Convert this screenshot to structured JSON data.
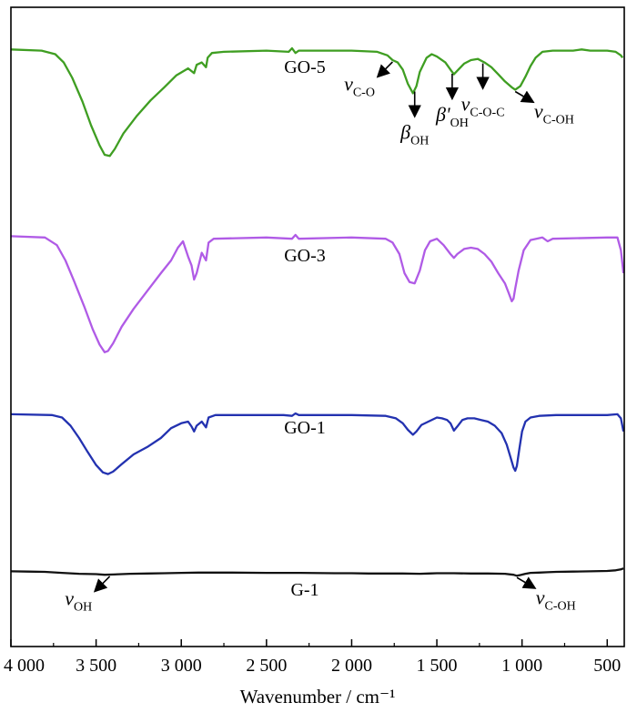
{
  "chart_data": {
    "type": "line",
    "title": "",
    "xlabel": "Wavenumber / cm⁻¹",
    "ylabel": "",
    "xlim": [
      4000,
      400
    ],
    "x_reversed": true,
    "xticks": [
      {
        "value": 4000,
        "label": "4 000"
      },
      {
        "value": 3500,
        "label": "3 500"
      },
      {
        "value": 3000,
        "label": "3 000"
      },
      {
        "value": 2500,
        "label": "2 500"
      },
      {
        "value": 2000,
        "label": "2 000"
      },
      {
        "value": 1500,
        "label": "1 500"
      },
      {
        "value": 1000,
        "label": "1 000"
      },
      {
        "value": 500,
        "label": "500"
      }
    ],
    "yticks": "none",
    "grid": false,
    "legend": "none",
    "series": [
      {
        "label": "GO-5",
        "color": "#3f9e22",
        "baseline": 0,
        "points": [
          [
            4000,
            0.01
          ],
          [
            3820,
            0.02
          ],
          [
            3740,
            0.05
          ],
          [
            3690,
            0.12
          ],
          [
            3640,
            0.25
          ],
          [
            3580,
            0.45
          ],
          [
            3530,
            0.65
          ],
          [
            3480,
            0.82
          ],
          [
            3450,
            0.9
          ],
          [
            3420,
            0.91
          ],
          [
            3390,
            0.85
          ],
          [
            3340,
            0.72
          ],
          [
            3260,
            0.57
          ],
          [
            3180,
            0.44
          ],
          [
            3100,
            0.33
          ],
          [
            3030,
            0.23
          ],
          [
            2960,
            0.17
          ],
          [
            2925,
            0.21
          ],
          [
            2910,
            0.14
          ],
          [
            2880,
            0.12
          ],
          [
            2855,
            0.16
          ],
          [
            2845,
            0.08
          ],
          [
            2820,
            0.04
          ],
          [
            2750,
            0.03
          ],
          [
            2500,
            0.02
          ],
          [
            2370,
            0.03
          ],
          [
            2350,
            0.0
          ],
          [
            2330,
            0.04
          ],
          [
            2310,
            0.02
          ],
          [
            2000,
            0.02
          ],
          [
            1850,
            0.03
          ],
          [
            1790,
            0.06
          ],
          [
            1760,
            0.1
          ],
          [
            1730,
            0.12
          ],
          [
            1700,
            0.18
          ],
          [
            1670,
            0.3
          ],
          [
            1640,
            0.38
          ],
          [
            1620,
            0.32
          ],
          [
            1600,
            0.2
          ],
          [
            1560,
            0.08
          ],
          [
            1530,
            0.05
          ],
          [
            1500,
            0.07
          ],
          [
            1450,
            0.12
          ],
          [
            1420,
            0.18
          ],
          [
            1400,
            0.22
          ],
          [
            1380,
            0.19
          ],
          [
            1340,
            0.13
          ],
          [
            1300,
            0.1
          ],
          [
            1260,
            0.09
          ],
          [
            1220,
            0.12
          ],
          [
            1180,
            0.16
          ],
          [
            1140,
            0.22
          ],
          [
            1100,
            0.28
          ],
          [
            1060,
            0.33
          ],
          [
            1040,
            0.35
          ],
          [
            1010,
            0.32
          ],
          [
            980,
            0.24
          ],
          [
            950,
            0.15
          ],
          [
            920,
            0.08
          ],
          [
            880,
            0.03
          ],
          [
            820,
            0.02
          ],
          [
            700,
            0.02
          ],
          [
            650,
            0.01
          ],
          [
            600,
            0.02
          ],
          [
            500,
            0.02
          ],
          [
            450,
            0.03
          ],
          [
            420,
            0.06
          ],
          [
            410,
            0.08
          ]
        ]
      },
      {
        "label": "GO-3",
        "color": "#b05be6",
        "baseline": 1,
        "points": [
          [
            4000,
            0.01
          ],
          [
            3800,
            0.02
          ],
          [
            3730,
            0.08
          ],
          [
            3680,
            0.2
          ],
          [
            3630,
            0.36
          ],
          [
            3570,
            0.56
          ],
          [
            3520,
            0.74
          ],
          [
            3480,
            0.86
          ],
          [
            3450,
            0.92
          ],
          [
            3430,
            0.91
          ],
          [
            3400,
            0.85
          ],
          [
            3350,
            0.72
          ],
          [
            3280,
            0.58
          ],
          [
            3200,
            0.44
          ],
          [
            3120,
            0.3
          ],
          [
            3060,
            0.2
          ],
          [
            3020,
            0.1
          ],
          [
            2990,
            0.05
          ],
          [
            2960,
            0.17
          ],
          [
            2940,
            0.24
          ],
          [
            2925,
            0.35
          ],
          [
            2910,
            0.3
          ],
          [
            2880,
            0.14
          ],
          [
            2855,
            0.2
          ],
          [
            2840,
            0.06
          ],
          [
            2810,
            0.03
          ],
          [
            2500,
            0.02
          ],
          [
            2350,
            0.03
          ],
          [
            2330,
            0.0
          ],
          [
            2310,
            0.03
          ],
          [
            2000,
            0.02
          ],
          [
            1800,
            0.03
          ],
          [
            1760,
            0.06
          ],
          [
            1720,
            0.15
          ],
          [
            1690,
            0.3
          ],
          [
            1660,
            0.37
          ],
          [
            1630,
            0.38
          ],
          [
            1600,
            0.28
          ],
          [
            1570,
            0.12
          ],
          [
            1540,
            0.05
          ],
          [
            1500,
            0.03
          ],
          [
            1460,
            0.08
          ],
          [
            1420,
            0.15
          ],
          [
            1400,
            0.18
          ],
          [
            1380,
            0.15
          ],
          [
            1340,
            0.11
          ],
          [
            1300,
            0.1
          ],
          [
            1260,
            0.11
          ],
          [
            1220,
            0.15
          ],
          [
            1180,
            0.21
          ],
          [
            1140,
            0.3
          ],
          [
            1100,
            0.38
          ],
          [
            1080,
            0.45
          ],
          [
            1060,
            0.52
          ],
          [
            1050,
            0.5
          ],
          [
            1040,
            0.42
          ],
          [
            1020,
            0.28
          ],
          [
            990,
            0.12
          ],
          [
            950,
            0.04
          ],
          [
            880,
            0.02
          ],
          [
            850,
            0.05
          ],
          [
            820,
            0.03
          ],
          [
            500,
            0.02
          ],
          [
            440,
            0.02
          ],
          [
            420,
            0.12
          ],
          [
            405,
            0.3
          ]
        ]
      },
      {
        "label": "GO-1",
        "color": "#2332b0",
        "baseline": 2,
        "points": [
          [
            4000,
            0.01
          ],
          [
            3760,
            0.02
          ],
          [
            3700,
            0.05
          ],
          [
            3650,
            0.15
          ],
          [
            3600,
            0.3
          ],
          [
            3550,
            0.47
          ],
          [
            3500,
            0.63
          ],
          [
            3460,
            0.72
          ],
          [
            3430,
            0.74
          ],
          [
            3400,
            0.71
          ],
          [
            3350,
            0.62
          ],
          [
            3280,
            0.5
          ],
          [
            3200,
            0.41
          ],
          [
            3120,
            0.3
          ],
          [
            3060,
            0.18
          ],
          [
            3000,
            0.12
          ],
          [
            2960,
            0.1
          ],
          [
            2940,
            0.16
          ],
          [
            2925,
            0.22
          ],
          [
            2910,
            0.15
          ],
          [
            2880,
            0.1
          ],
          [
            2855,
            0.17
          ],
          [
            2840,
            0.05
          ],
          [
            2800,
            0.02
          ],
          [
            2400,
            0.02
          ],
          [
            2350,
            0.03
          ],
          [
            2330,
            0.0
          ],
          [
            2310,
            0.02
          ],
          [
            2000,
            0.02
          ],
          [
            1800,
            0.03
          ],
          [
            1740,
            0.06
          ],
          [
            1700,
            0.12
          ],
          [
            1670,
            0.2
          ],
          [
            1640,
            0.26
          ],
          [
            1620,
            0.22
          ],
          [
            1590,
            0.14
          ],
          [
            1550,
            0.1
          ],
          [
            1500,
            0.05
          ],
          [
            1470,
            0.06
          ],
          [
            1440,
            0.08
          ],
          [
            1420,
            0.12
          ],
          [
            1400,
            0.21
          ],
          [
            1380,
            0.16
          ],
          [
            1350,
            0.08
          ],
          [
            1320,
            0.06
          ],
          [
            1280,
            0.06
          ],
          [
            1240,
            0.08
          ],
          [
            1200,
            0.1
          ],
          [
            1160,
            0.15
          ],
          [
            1120,
            0.24
          ],
          [
            1090,
            0.38
          ],
          [
            1070,
            0.52
          ],
          [
            1050,
            0.66
          ],
          [
            1040,
            0.7
          ],
          [
            1030,
            0.64
          ],
          [
            1015,
            0.42
          ],
          [
            1000,
            0.22
          ],
          [
            980,
            0.1
          ],
          [
            950,
            0.05
          ],
          [
            900,
            0.03
          ],
          [
            800,
            0.02
          ],
          [
            500,
            0.02
          ],
          [
            440,
            0.01
          ],
          [
            420,
            0.06
          ],
          [
            405,
            0.22
          ]
        ]
      },
      {
        "label": "G-1",
        "color": "#111111",
        "baseline": 3,
        "points": [
          [
            4000,
            0.01
          ],
          [
            3900,
            0.02
          ],
          [
            3800,
            0.03
          ],
          [
            3700,
            0.06
          ],
          [
            3600,
            0.09
          ],
          [
            3500,
            0.1
          ],
          [
            3450,
            0.12
          ],
          [
            3400,
            0.11
          ],
          [
            3300,
            0.09
          ],
          [
            3200,
            0.08
          ],
          [
            3100,
            0.07
          ],
          [
            3000,
            0.06
          ],
          [
            2900,
            0.05
          ],
          [
            2800,
            0.05
          ],
          [
            2700,
            0.05
          ],
          [
            2500,
            0.06
          ],
          [
            2300,
            0.06
          ],
          [
            2100,
            0.07
          ],
          [
            2000,
            0.07
          ],
          [
            1900,
            0.08
          ],
          [
            1800,
            0.08
          ],
          [
            1700,
            0.08
          ],
          [
            1600,
            0.09
          ],
          [
            1550,
            0.08
          ],
          [
            1500,
            0.07
          ],
          [
            1400,
            0.07
          ],
          [
            1300,
            0.08
          ],
          [
            1200,
            0.08
          ],
          [
            1100,
            0.09
          ],
          [
            1050,
            0.12
          ],
          [
            1030,
            0.15
          ],
          [
            1010,
            0.13
          ],
          [
            980,
            0.09
          ],
          [
            950,
            0.06
          ],
          [
            900,
            0.05
          ],
          [
            850,
            0.04
          ],
          [
            800,
            0.03
          ],
          [
            700,
            0.02
          ],
          [
            600,
            0.01
          ],
          [
            500,
            0.0
          ],
          [
            450,
            -0.02
          ],
          [
            420,
            -0.05
          ],
          [
            405,
            -0.08
          ]
        ]
      }
    ],
    "annotations": [
      {
        "series": "GO-5",
        "text": "ν",
        "sub": "C-O",
        "at": 1760,
        "dir": "down-left"
      },
      {
        "series": "GO-5",
        "text": "β",
        "sub": "OH",
        "at": 1630,
        "dir": "down"
      },
      {
        "series": "GO-5",
        "text": "β'",
        "sub": "OH",
        "at": 1410,
        "dir": "down"
      },
      {
        "series": "GO-5",
        "text": "ν",
        "sub": "C-O-C",
        "at": 1230,
        "dir": "down"
      },
      {
        "series": "GO-5",
        "text": "ν",
        "sub": "C-OH",
        "at": 1040,
        "dir": "down-right"
      },
      {
        "series": "G-1",
        "text": "ν",
        "sub": "OH",
        "at": 3420,
        "dir": "down-left"
      },
      {
        "series": "G-1",
        "text": "ν",
        "sub": "C-OH",
        "at": 1030,
        "dir": "down-right"
      }
    ]
  }
}
